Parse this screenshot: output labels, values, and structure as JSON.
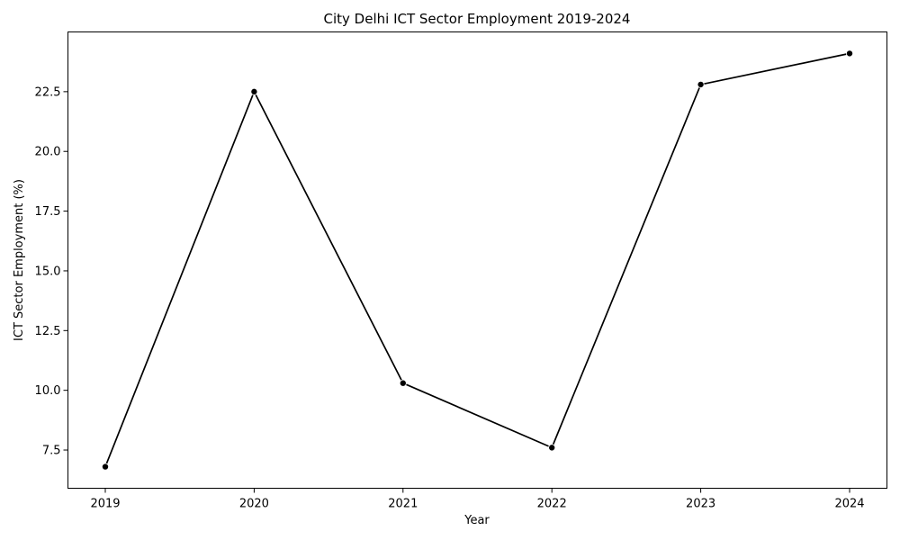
{
  "chart_data": {
    "type": "line",
    "title": "City Delhi ICT Sector Employment 2019-2024",
    "xlabel": "Year",
    "ylabel": "ICT Sector Employment (%)",
    "x": [
      "2019",
      "2020",
      "2021",
      "2022",
      "2023",
      "2024"
    ],
    "series": [
      {
        "values": [
          6.8,
          22.5,
          10.3,
          7.6,
          22.8,
          24.1
        ]
      }
    ],
    "ylim": [
      5.9,
      25.0
    ],
    "yticks": [
      "7.5",
      "10.0",
      "12.5",
      "15.0",
      "17.5",
      "20.0",
      "22.5"
    ],
    "grid": false,
    "line_color": "#000000",
    "marker": "circle"
  }
}
